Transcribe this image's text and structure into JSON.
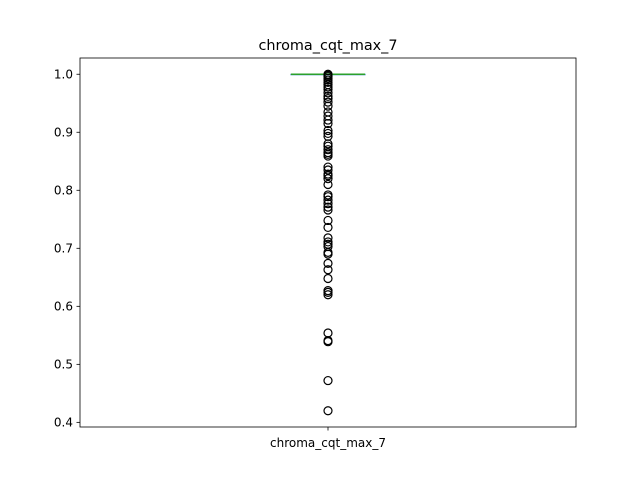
{
  "chart_data": {
    "type": "box",
    "title": "chroma_cqt_max_7",
    "categories": [
      "chroma_cqt_max_7"
    ],
    "ylim": [
      0.392,
      1.028
    ],
    "yticks": [
      0.4,
      0.5,
      0.6,
      0.7,
      0.8,
      0.9,
      1.0
    ],
    "ytick_labels": [
      "0.4",
      "0.5",
      "0.6",
      "0.7",
      "0.8",
      "0.9",
      "1.0"
    ],
    "box": {
      "q1": 1.0,
      "median": 1.0,
      "q3": 1.0,
      "whisker_low": 1.0,
      "whisker_high": 1.0
    },
    "median_color": "#2ca02c",
    "box_color": "#1f77b4",
    "outliers": [
      0.42,
      0.472,
      0.539,
      0.541,
      0.554,
      0.62,
      0.624,
      0.627,
      0.648,
      0.663,
      0.674,
      0.69,
      0.693,
      0.703,
      0.707,
      0.711,
      0.718,
      0.736,
      0.748,
      0.766,
      0.771,
      0.777,
      0.783,
      0.789,
      0.792,
      0.81,
      0.82,
      0.825,
      0.828,
      0.835,
      0.84,
      0.859,
      0.862,
      0.865,
      0.87,
      0.876,
      0.88,
      0.893,
      0.898,
      0.903,
      0.915,
      0.921,
      0.928,
      0.935,
      0.945,
      0.952,
      0.958,
      0.962,
      0.968,
      0.974,
      0.978,
      0.982,
      0.986,
      0.99,
      0.993,
      0.996,
      0.998,
      1.0
    ],
    "grid": false,
    "legend": "none"
  }
}
